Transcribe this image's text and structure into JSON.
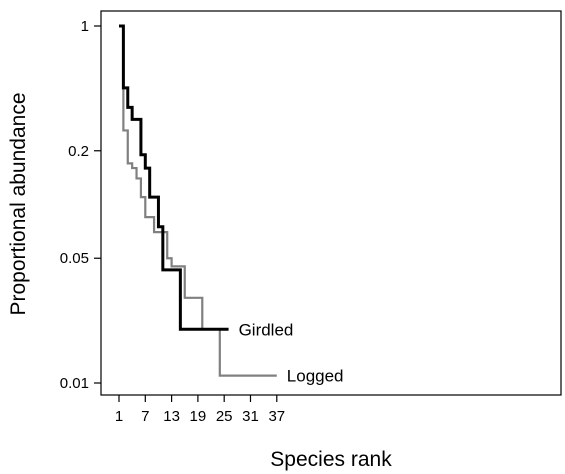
{
  "chart_data": {
    "type": "line",
    "step": true,
    "xlabel": "Species rank",
    "ylabel": "Proportional abundance",
    "y_scale": "log",
    "xlim": [
      0,
      50
    ],
    "ylim": [
      0.008,
      1.2
    ],
    "x_ticks": [
      1,
      7,
      13,
      19,
      25,
      31,
      37
    ],
    "y_ticks": [
      {
        "value": 1,
        "label": "1"
      },
      {
        "value": 0.2,
        "label": "0.2"
      },
      {
        "value": 0.05,
        "label": "0.05"
      },
      {
        "value": 0.01,
        "label": "0.01"
      }
    ],
    "grid": false,
    "series": [
      {
        "name": "Girdled",
        "color": "#000000",
        "points": [
          [
            1,
            1.0
          ],
          [
            2,
            0.45
          ],
          [
            3,
            0.35
          ],
          [
            4,
            0.3
          ],
          [
            5,
            0.3
          ],
          [
            6,
            0.19
          ],
          [
            7,
            0.16
          ],
          [
            8,
            0.11
          ],
          [
            9,
            0.11
          ],
          [
            10,
            0.075
          ],
          [
            11,
            0.043
          ],
          [
            12,
            0.043
          ],
          [
            13,
            0.043
          ],
          [
            14,
            0.043
          ],
          [
            15,
            0.02
          ],
          [
            26,
            0.02
          ]
        ]
      },
      {
        "name": "Logged",
        "color": "#808080",
        "points": [
          [
            1,
            1.0
          ],
          [
            2,
            0.26
          ],
          [
            3,
            0.17
          ],
          [
            4,
            0.16
          ],
          [
            5,
            0.14
          ],
          [
            6,
            0.11
          ],
          [
            7,
            0.085
          ],
          [
            8,
            0.085
          ],
          [
            9,
            0.07
          ],
          [
            10,
            0.07
          ],
          [
            11,
            0.07
          ],
          [
            12,
            0.05
          ],
          [
            13,
            0.045
          ],
          [
            14,
            0.045
          ],
          [
            15,
            0.045
          ],
          [
            16,
            0.03
          ],
          [
            17,
            0.03
          ],
          [
            18,
            0.03
          ],
          [
            19,
            0.03
          ],
          [
            20,
            0.02
          ],
          [
            24,
            0.011
          ],
          [
            37,
            0.011
          ]
        ]
      }
    ]
  }
}
